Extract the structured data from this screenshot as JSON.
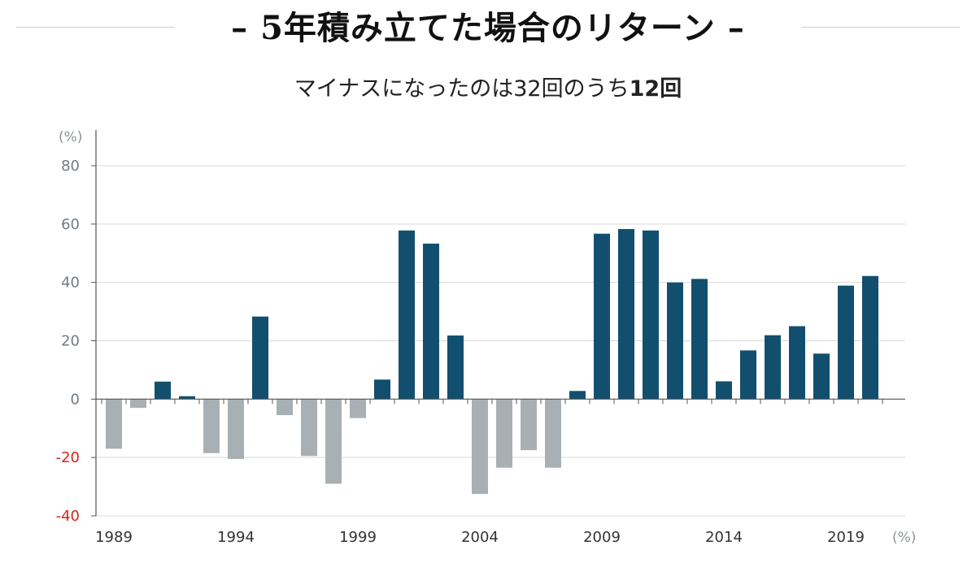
{
  "header": {
    "title": "– 5年積み立てた場合のリターン –",
    "subtitle_prefix": "マイナスになったのは32回のうち",
    "subtitle_bold": "12回"
  },
  "colors": {
    "positive": "#124f6f",
    "negative": "#a9b0b3",
    "negative_tick": "#d8261c"
  },
  "chart_data": {
    "type": "bar",
    "title": "– 5年積み立てた場合のリターン –",
    "subtitle": "マイナスになったのは32回のうち12回",
    "ylabel": "(%)",
    "xlabel": "(%)",
    "ylim": [
      -40,
      80
    ],
    "yticks": [
      80,
      60,
      40,
      20,
      0,
      -20,
      -40
    ],
    "xtick_labels": [
      "1989",
      "1994",
      "1999",
      "2004",
      "2009",
      "2014",
      "2019"
    ],
    "grid": true,
    "categories": [
      "1989",
      "1990",
      "1991",
      "1992",
      "1993",
      "1994",
      "1995",
      "1996",
      "1997",
      "1998",
      "1999",
      "2000",
      "2001",
      "2002",
      "2003",
      "2004",
      "2005",
      "2006",
      "2007",
      "2008",
      "2009",
      "2010",
      "2011",
      "2012",
      "2013",
      "2014",
      "2015",
      "2016",
      "2017",
      "2018",
      "2019",
      "2020"
    ],
    "values": [
      -17,
      -3,
      6,
      1,
      -18.5,
      -20.5,
      28.3,
      -5.5,
      -19.5,
      -29,
      -6.5,
      6.7,
      57.8,
      53.3,
      21.8,
      -32.5,
      -23.5,
      -17.5,
      -23.5,
      2.8,
      56.7,
      58.3,
      57.8,
      40,
      41.2,
      6.1,
      16.7,
      21.9,
      25,
      15.6,
      38.9,
      42.2
    ]
  }
}
